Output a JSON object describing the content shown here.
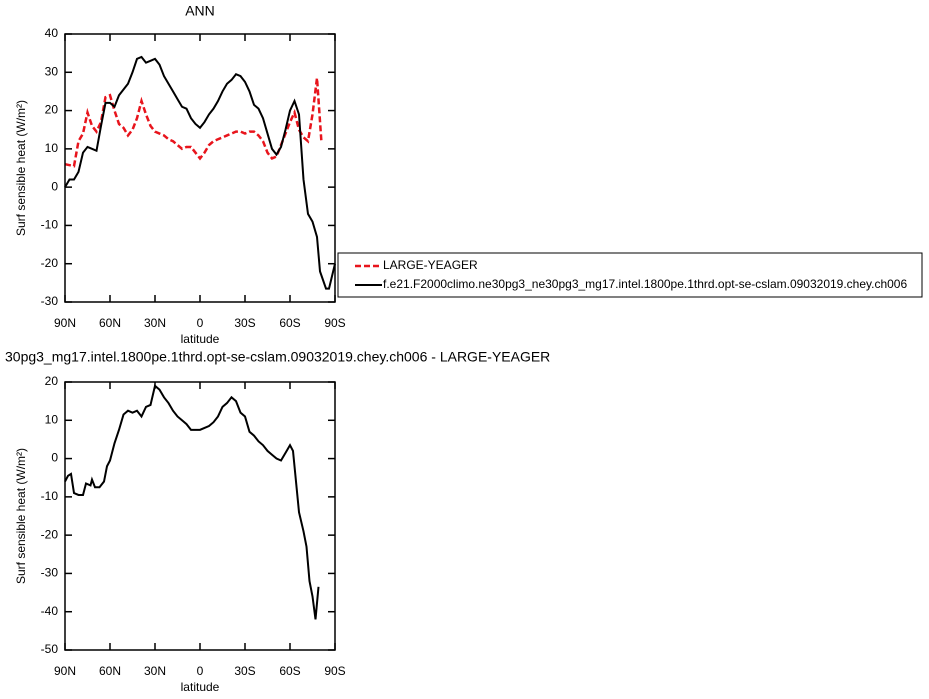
{
  "chart_data": [
    {
      "type": "line",
      "title": "ANN",
      "xlabel": "latitude",
      "ylabel": "Surf sensible heat (W/m²)",
      "xlim": [
        90,
        -90
      ],
      "ylim": [
        -30,
        40
      ],
      "xticks": [
        {
          "value": 90,
          "label": "90N"
        },
        {
          "value": 60,
          "label": "60N"
        },
        {
          "value": 30,
          "label": "30N"
        },
        0,
        {
          "value": -30,
          "label": "30S"
        },
        {
          "value": -60,
          "label": "60S"
        },
        {
          "value": -90,
          "label": "90S"
        }
      ],
      "yticks": [
        -30,
        -20,
        -10,
        0,
        10,
        20,
        30,
        40
      ],
      "legend": "right",
      "series": [
        {
          "name": "LARGE-YEAGER",
          "color": "#e8141c",
          "dash": true,
          "x": [
            90,
            84,
            81,
            78,
            75,
            72,
            69,
            66,
            63,
            60,
            57,
            54,
            51,
            48,
            45,
            42,
            39,
            36,
            33,
            30,
            27,
            24,
            21,
            18,
            15,
            12,
            9,
            6,
            3,
            0,
            -3,
            -6,
            -9,
            -12,
            -15,
            -18,
            -21,
            -24,
            -27,
            -30,
            -33,
            -36,
            -39,
            -42,
            -45,
            -48,
            -51,
            -54,
            -57,
            -60,
            -63,
            -66,
            -69,
            -72,
            -75,
            -78,
            -81
          ],
          "values": [
            6,
            5.5,
            12,
            14,
            19.5,
            16,
            14.5,
            17,
            23.5,
            24,
            20,
            16.5,
            15.5,
            13.5,
            15,
            18,
            22.5,
            19,
            16,
            14.5,
            14,
            13.5,
            12.5,
            12,
            11,
            10,
            10.5,
            10.5,
            9,
            7.5,
            9,
            11,
            12,
            12.5,
            13,
            13.5,
            14,
            14.5,
            14.5,
            14,
            14.5,
            14.5,
            13.5,
            12,
            9,
            7.5,
            8,
            11,
            14,
            17,
            19.5,
            15,
            13,
            12,
            19,
            28.5,
            11.5
          ]
        },
        {
          "name": "f.e21.F2000climo.ne30pg3_ne30pg3_mg17.intel.1800pe.1thrd.opt-se-cslam.09032019.chey.ch006",
          "color": "#000000",
          "dash": false,
          "x": [
            90,
            87,
            84,
            81,
            78,
            75,
            72,
            69,
            66,
            63,
            60,
            57,
            54,
            51,
            48,
            45,
            42,
            39,
            36,
            33,
            30,
            27,
            24,
            21,
            18,
            15,
            12,
            9,
            6,
            3,
            0,
            -3,
            -6,
            -9,
            -12,
            -15,
            -18,
            -21,
            -24,
            -27,
            -30,
            -33,
            -36,
            -39,
            -42,
            -45,
            -48,
            -51,
            -54,
            -57,
            -60,
            -63,
            -66,
            -69,
            -72,
            -75,
            -78,
            -80,
            -84,
            -86,
            -90
          ],
          "values": [
            0,
            2,
            2,
            4,
            9,
            10.5,
            10,
            9.5,
            16,
            22,
            22,
            21,
            24,
            25.5,
            27,
            30,
            33.5,
            34,
            32.5,
            33,
            33.5,
            32,
            29,
            27,
            25,
            23,
            21,
            20.5,
            18,
            16.5,
            15.5,
            17,
            19,
            20.5,
            22.5,
            25,
            27,
            28,
            29.5,
            29,
            27.5,
            25,
            21.5,
            20.5,
            18,
            14,
            10,
            8.5,
            10.5,
            15,
            20,
            22.5,
            19,
            2,
            -7,
            -9,
            -13,
            -22,
            -26.5,
            -26.5,
            -20
          ]
        }
      ]
    },
    {
      "type": "line",
      "title": "30pg3_mg17.intel.1800pe.1thrd.opt-se-cslam.09032019.chey.ch006 - LARGE-YEAGER",
      "xlabel": "latitude",
      "ylabel": "Surf sensible heat (W/m²)",
      "xlim": [
        90,
        -90
      ],
      "ylim": [
        -50,
        20
      ],
      "xticks": [
        {
          "value": 90,
          "label": "90N"
        },
        {
          "value": 60,
          "label": "60N"
        },
        {
          "value": 30,
          "label": "30N"
        },
        0,
        {
          "value": -30,
          "label": "30S"
        },
        {
          "value": -60,
          "label": "60S"
        },
        {
          "value": -90,
          "label": "90S"
        }
      ],
      "yticks": [
        -50,
        -40,
        -30,
        -20,
        -10,
        0,
        10,
        20
      ],
      "series": [
        {
          "color": "#000000",
          "dash": false,
          "x": [
            90,
            88,
            86,
            84,
            81,
            78,
            76,
            73,
            72,
            70,
            67,
            64,
            62,
            60,
            57,
            54,
            51,
            48,
            45,
            42,
            39,
            36,
            33,
            30,
            27,
            24,
            21,
            18,
            15,
            12,
            9,
            6,
            3,
            0,
            -3,
            -6,
            -9,
            -12,
            -15,
            -18,
            -21,
            -24,
            -27,
            -30,
            -33,
            -36,
            -39,
            -42,
            -45,
            -48,
            -51,
            -54,
            -57,
            -60,
            -62,
            -66,
            -69,
            -71,
            -73,
            -75,
            -77,
            -79
          ],
          "values": [
            -6,
            -4.5,
            -4,
            -9,
            -9.5,
            -9.5,
            -6.5,
            -7,
            -5.5,
            -7.5,
            -7.5,
            -6,
            -2,
            -0.5,
            4,
            7.5,
            11.5,
            12.5,
            12,
            12.5,
            11,
            13.5,
            14,
            19,
            18,
            16,
            14.5,
            12.5,
            11,
            10,
            9,
            7.5,
            7.5,
            7.5,
            8,
            8.5,
            9.5,
            11,
            13.5,
            14.5,
            16,
            15,
            12,
            11,
            7,
            6,
            4.5,
            3.5,
            2,
            1,
            0,
            -0.5,
            1.5,
            3.5,
            2,
            -14,
            -19,
            -23,
            -32,
            -36,
            -42,
            -33.5
          ]
        }
      ]
    }
  ]
}
